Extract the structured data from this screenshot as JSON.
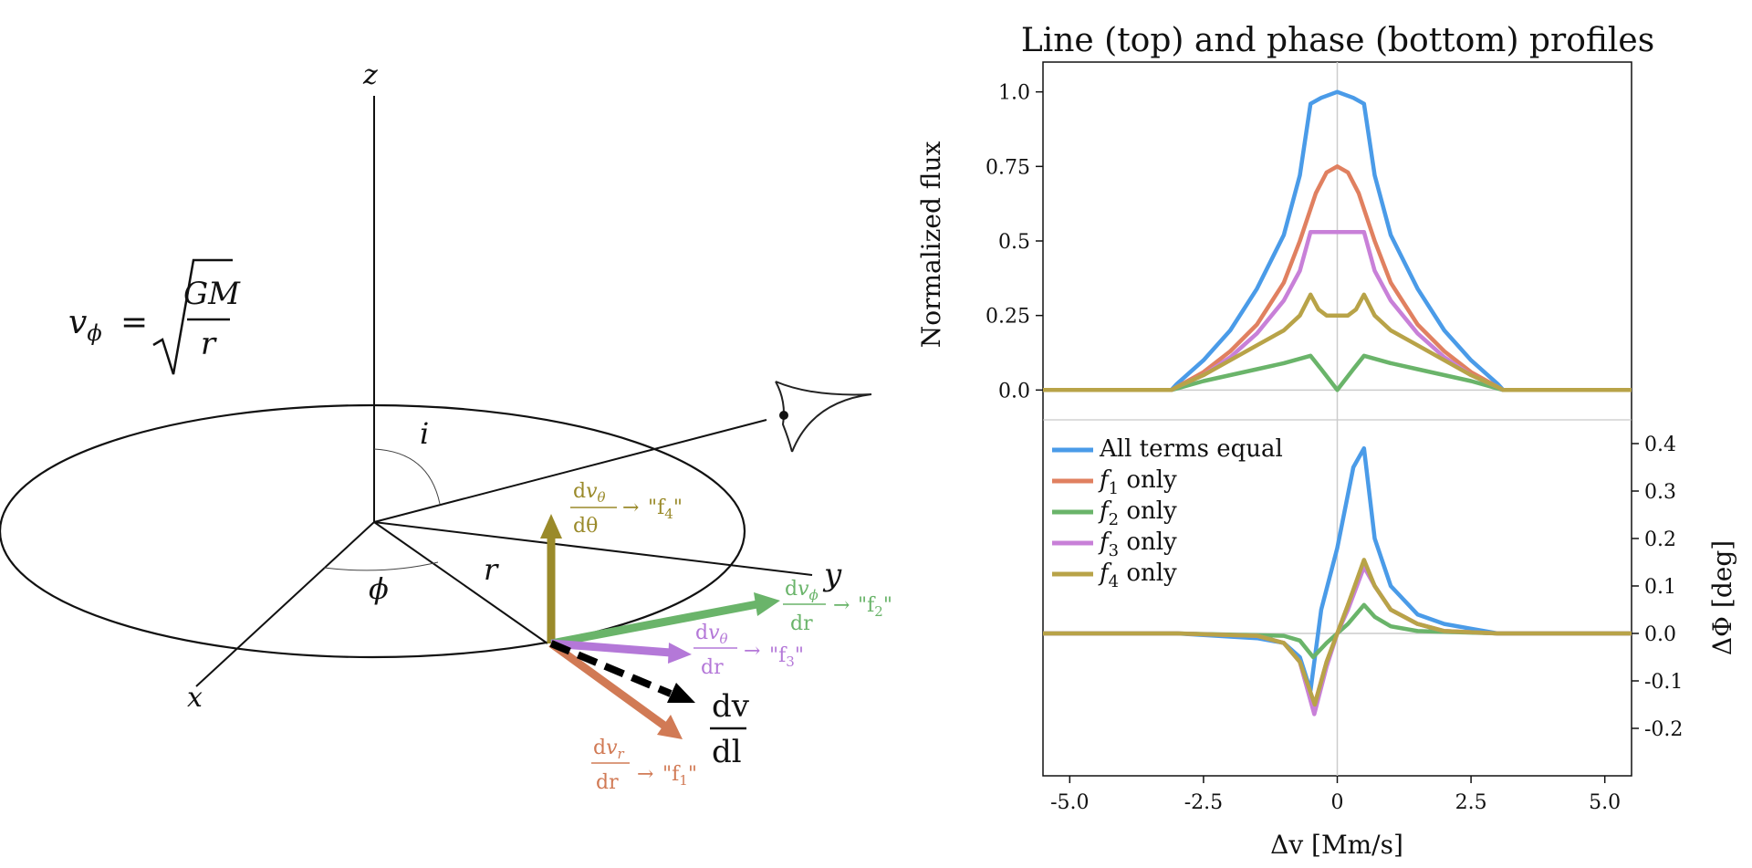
{
  "diagram": {
    "equation": {
      "lhs": "v",
      "lhs_sub": "ϕ",
      "eq": "=",
      "num": "GM",
      "den": "r"
    },
    "axes": {
      "z": "z",
      "x": "x",
      "y": "y"
    },
    "angles": {
      "i": "i",
      "phi": "ϕ",
      "r": "r"
    },
    "vectors": [
      {
        "id": "f4",
        "color": "#9a8a2a",
        "num_d": "d",
        "num_v": "v",
        "num_sub": "θ",
        "den": "dθ",
        "arrow": "→",
        "label": "\"f",
        "label_sub": "4",
        "label_end": "\""
      },
      {
        "id": "f2",
        "color": "#6ab46a",
        "num_d": "d",
        "num_v": "v",
        "num_sub": "ϕ",
        "den": "dr",
        "arrow": "→",
        "label": "\"f",
        "label_sub": "2",
        "label_end": "\""
      },
      {
        "id": "f3",
        "color": "#b478d8",
        "num_d": "d",
        "num_v": "v",
        "num_sub": "θ",
        "den": "dr",
        "arrow": "→",
        "label": "\"f",
        "label_sub": "3",
        "label_end": "\""
      },
      {
        "id": "f1",
        "color": "#d17a55",
        "num_d": "d",
        "num_v": "v",
        "num_sub": "r",
        "den": "dr",
        "arrow": "→",
        "label": "\"f",
        "label_sub": "1",
        "label_end": "\""
      }
    ],
    "dvdl": {
      "num": "dv",
      "den": "dl"
    }
  },
  "chart_data": {
    "type": "line",
    "title": "Line (top) and phase (bottom) profiles",
    "xlabel": "Δv [Mm/s]",
    "xlim": [
      -5.5,
      5.5
    ],
    "xticks": [
      "-5.0",
      "-2.5",
      "0",
      "2.5",
      "5.0"
    ],
    "top": {
      "ylabel": "Normalized flux",
      "ylim": [
        -0.1,
        1.1
      ],
      "yticks": [
        "0.0",
        "0.25",
        "0.5",
        "0.75",
        "1.0"
      ],
      "series": [
        {
          "color": "#4a9be8",
          "points": [
            [
              -5.5,
              0
            ],
            [
              -3.1,
              0
            ],
            [
              -3.0,
              0.02
            ],
            [
              -2.5,
              0.1
            ],
            [
              -2.0,
              0.2
            ],
            [
              -1.5,
              0.34
            ],
            [
              -1.0,
              0.52
            ],
            [
              -0.7,
              0.72
            ],
            [
              -0.5,
              0.96
            ],
            [
              -0.3,
              0.98
            ],
            [
              0,
              1.0
            ],
            [
              0.3,
              0.98
            ],
            [
              0.5,
              0.96
            ],
            [
              0.7,
              0.72
            ],
            [
              1.0,
              0.52
            ],
            [
              1.5,
              0.34
            ],
            [
              2.0,
              0.2
            ],
            [
              2.5,
              0.1
            ],
            [
              3.0,
              0.02
            ],
            [
              3.1,
              0
            ],
            [
              5.5,
              0
            ]
          ]
        },
        {
          "color": "#e08060",
          "points": [
            [
              -5.5,
              0
            ],
            [
              -3.1,
              0
            ],
            [
              -3.0,
              0.01
            ],
            [
              -2.5,
              0.06
            ],
            [
              -2.0,
              0.13
            ],
            [
              -1.5,
              0.22
            ],
            [
              -1.0,
              0.36
            ],
            [
              -0.7,
              0.5
            ],
            [
              -0.4,
              0.66
            ],
            [
              -0.2,
              0.73
            ],
            [
              0,
              0.75
            ],
            [
              0.2,
              0.73
            ],
            [
              0.4,
              0.66
            ],
            [
              0.7,
              0.5
            ],
            [
              1.0,
              0.36
            ],
            [
              1.5,
              0.22
            ],
            [
              2.0,
              0.13
            ],
            [
              2.5,
              0.06
            ],
            [
              3.0,
              0.01
            ],
            [
              3.1,
              0
            ],
            [
              5.5,
              0
            ]
          ]
        },
        {
          "color": "#6ab46a",
          "points": [
            [
              -5.5,
              0
            ],
            [
              -3.1,
              0
            ],
            [
              -2.5,
              0.03
            ],
            [
              -2.0,
              0.05
            ],
            [
              -1.5,
              0.07
            ],
            [
              -1.0,
              0.09
            ],
            [
              -0.5,
              0.115
            ],
            [
              -0.3,
              0.07
            ],
            [
              0,
              0
            ],
            [
              0.3,
              0.07
            ],
            [
              0.5,
              0.115
            ],
            [
              1.0,
              0.09
            ],
            [
              1.5,
              0.07
            ],
            [
              2.0,
              0.05
            ],
            [
              2.5,
              0.03
            ],
            [
              3.1,
              0
            ],
            [
              5.5,
              0
            ]
          ]
        },
        {
          "color": "#c880d8",
          "points": [
            [
              -5.5,
              0
            ],
            [
              -3.1,
              0
            ],
            [
              -3.0,
              0.01
            ],
            [
              -2.5,
              0.05
            ],
            [
              -2.0,
              0.11
            ],
            [
              -1.5,
              0.19
            ],
            [
              -1.0,
              0.3
            ],
            [
              -0.7,
              0.4
            ],
            [
              -0.5,
              0.53
            ],
            [
              0.5,
              0.53
            ],
            [
              0.7,
              0.4
            ],
            [
              1.0,
              0.3
            ],
            [
              1.5,
              0.19
            ],
            [
              2.0,
              0.11
            ],
            [
              2.5,
              0.05
            ],
            [
              3.0,
              0.01
            ],
            [
              3.1,
              0
            ],
            [
              5.5,
              0
            ]
          ]
        },
        {
          "color": "#b8a348",
          "points": [
            [
              -5.5,
              0
            ],
            [
              -3.1,
              0
            ],
            [
              -3.0,
              0.01
            ],
            [
              -2.5,
              0.05
            ],
            [
              -2.0,
              0.1
            ],
            [
              -1.5,
              0.15
            ],
            [
              -1.0,
              0.2
            ],
            [
              -0.7,
              0.25
            ],
            [
              -0.5,
              0.32
            ],
            [
              -0.35,
              0.27
            ],
            [
              -0.2,
              0.25
            ],
            [
              0,
              0.25
            ],
            [
              0.2,
              0.25
            ],
            [
              0.35,
              0.27
            ],
            [
              0.5,
              0.32
            ],
            [
              0.7,
              0.25
            ],
            [
              1.0,
              0.2
            ],
            [
              1.5,
              0.15
            ],
            [
              2.0,
              0.1
            ],
            [
              2.5,
              0.05
            ],
            [
              3.0,
              0.01
            ],
            [
              3.1,
              0
            ],
            [
              5.5,
              0
            ]
          ]
        }
      ]
    },
    "bottom": {
      "ylabel": "ΔΦ [deg]",
      "ylim": [
        -0.3,
        0.45
      ],
      "yticks": [
        "0.4",
        "0.3",
        "0.2",
        "0.1",
        "0.0",
        "-0.1",
        "-0.2"
      ],
      "series": [
        {
          "color": "#4a9be8",
          "points": [
            [
              -5.5,
              0
            ],
            [
              -3.0,
              0
            ],
            [
              -1.5,
              -0.01
            ],
            [
              -1.0,
              -0.02
            ],
            [
              -0.7,
              -0.05
            ],
            [
              -0.5,
              -0.12
            ],
            [
              -0.3,
              0.05
            ],
            [
              0,
              0.18
            ],
            [
              0.3,
              0.35
            ],
            [
              0.5,
              0.39
            ],
            [
              0.7,
              0.2
            ],
            [
              1.0,
              0.1
            ],
            [
              1.5,
              0.04
            ],
            [
              2.0,
              0.02
            ],
            [
              2.5,
              0.01
            ],
            [
              3.0,
              0
            ],
            [
              5.5,
              0
            ]
          ]
        },
        {
          "color": "#e08060",
          "points": [
            [
              -5.5,
              0
            ],
            [
              -3.0,
              0
            ],
            [
              -1.5,
              -0.005
            ],
            [
              -1.0,
              -0.02
            ],
            [
              -0.7,
              -0.06
            ],
            [
              -0.45,
              -0.16
            ],
            [
              -0.2,
              -0.06
            ],
            [
              0,
              0.0
            ],
            [
              0.2,
              0.06
            ],
            [
              0.5,
              0.15
            ],
            [
              0.7,
              0.1
            ],
            [
              1.0,
              0.05
            ],
            [
              1.5,
              0.02
            ],
            [
              2.0,
              0.005
            ],
            [
              3.0,
              0
            ],
            [
              5.5,
              0
            ]
          ]
        },
        {
          "color": "#6ab46a",
          "points": [
            [
              -5.5,
              0
            ],
            [
              -3.0,
              0
            ],
            [
              -1.0,
              -0.005
            ],
            [
              -0.7,
              -0.015
            ],
            [
              -0.45,
              -0.05
            ],
            [
              -0.2,
              -0.02
            ],
            [
              0,
              0.0
            ],
            [
              0.2,
              0.02
            ],
            [
              0.5,
              0.06
            ],
            [
              0.7,
              0.035
            ],
            [
              1.0,
              0.015
            ],
            [
              1.5,
              0.005
            ],
            [
              3.0,
              0
            ],
            [
              5.5,
              0
            ]
          ]
        },
        {
          "color": "#c880d8",
          "points": [
            [
              -5.5,
              0
            ],
            [
              -3.0,
              0
            ],
            [
              -1.5,
              -0.005
            ],
            [
              -1.0,
              -0.02
            ],
            [
              -0.7,
              -0.06
            ],
            [
              -0.43,
              -0.17
            ],
            [
              -0.2,
              -0.07
            ],
            [
              0,
              0.0
            ],
            [
              0.2,
              0.05
            ],
            [
              0.5,
              0.14
            ],
            [
              0.7,
              0.1
            ],
            [
              1.0,
              0.05
            ],
            [
              1.5,
              0.02
            ],
            [
              2.0,
              0.005
            ],
            [
              3.0,
              0
            ],
            [
              5.5,
              0
            ]
          ]
        },
        {
          "color": "#b8a348",
          "points": [
            [
              -5.5,
              0
            ],
            [
              -3.0,
              0
            ],
            [
              -1.5,
              -0.005
            ],
            [
              -1.0,
              -0.02
            ],
            [
              -0.7,
              -0.06
            ],
            [
              -0.42,
              -0.15
            ],
            [
              -0.2,
              -0.06
            ],
            [
              0,
              0.0
            ],
            [
              0.2,
              0.06
            ],
            [
              0.5,
              0.155
            ],
            [
              0.7,
              0.1
            ],
            [
              1.0,
              0.05
            ],
            [
              1.5,
              0.02
            ],
            [
              2.0,
              0.005
            ],
            [
              3.0,
              0
            ],
            [
              5.5,
              0
            ]
          ]
        }
      ]
    },
    "legend": {
      "placement": "upper-left of bottom panel",
      "entries": [
        {
          "color": "#4a9be8",
          "prefix": "All terms equal",
          "sub": "",
          "suffix": ""
        },
        {
          "color": "#e08060",
          "prefix": "f",
          "sub": "1",
          "suffix": " only"
        },
        {
          "color": "#6ab46a",
          "prefix": "f",
          "sub": "2",
          "suffix": " only"
        },
        {
          "color": "#c880d8",
          "prefix": "f",
          "sub": "3",
          "suffix": " only"
        },
        {
          "color": "#b8a348",
          "prefix": "f",
          "sub": "4",
          "suffix": " only"
        }
      ]
    },
    "grid": false,
    "zero_lines": true
  }
}
